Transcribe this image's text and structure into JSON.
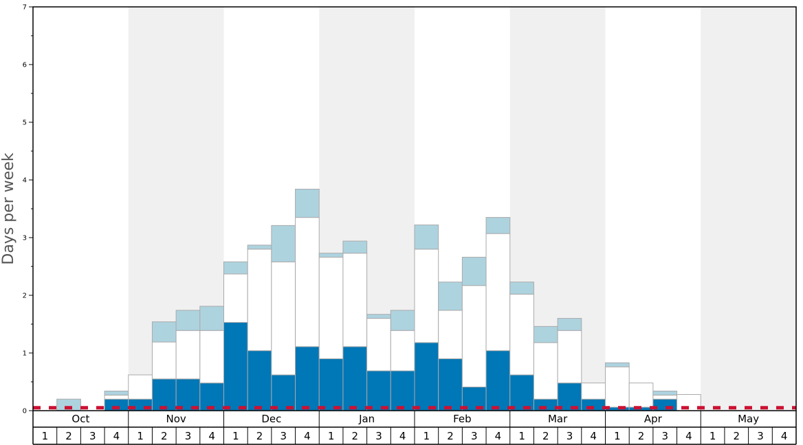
{
  "chart_data": {
    "type": "bar",
    "stacked": true,
    "ylabel": "Days per week",
    "ylim": [
      0,
      7
    ],
    "yticks": [
      "0",
      "1",
      "2",
      "3",
      "4",
      "5",
      "6",
      "7"
    ],
    "months": [
      "Oct",
      "Nov",
      "Dec",
      "Jan",
      "Feb",
      "Mar",
      "Apr",
      "May"
    ],
    "week_labels": [
      "1",
      "2",
      "3",
      "4"
    ],
    "reference_line_value": 0.05,
    "colors": {
      "dark": "#0077b6",
      "middle": "#ffffff",
      "light": "#add3df",
      "shade": "#f0f0f0",
      "reference": "#cc1133",
      "bar_outline": "#aaaaaa"
    },
    "series": [
      {
        "values": [
          0,
          0,
          0,
          0.2,
          0.2,
          0.55,
          0.55,
          0.48,
          1.53,
          1.04,
          0.62,
          1.11,
          0.9,
          1.11,
          0.69,
          0.69,
          1.18,
          0.9,
          0.41,
          1.04,
          0.62,
          0.2,
          0.48,
          0.2,
          0.06,
          0.06,
          0.2,
          0,
          0,
          0,
          0,
          0
        ]
      },
      {
        "values": [
          0,
          0,
          0,
          0.07,
          0.42,
          0.64,
          0.84,
          0.91,
          0.84,
          1.76,
          1.96,
          2.24,
          1.76,
          1.62,
          0.91,
          0.7,
          1.62,
          0.84,
          1.76,
          2.03,
          1.4,
          0.98,
          0.91,
          0.28,
          0.7,
          0.42,
          0.07,
          0.28,
          0,
          0,
          0,
          0
        ]
      },
      {
        "values": [
          0,
          0.2,
          0,
          0.07,
          0,
          0.35,
          0.35,
          0.42,
          0.21,
          0.07,
          0.63,
          0.49,
          0.07,
          0.21,
          0.07,
          0.35,
          0.42,
          0.49,
          0.49,
          0.28,
          0.21,
          0.28,
          0.21,
          0,
          0.07,
          0,
          0.07,
          0,
          0,
          0,
          0,
          0
        ]
      }
    ]
  }
}
